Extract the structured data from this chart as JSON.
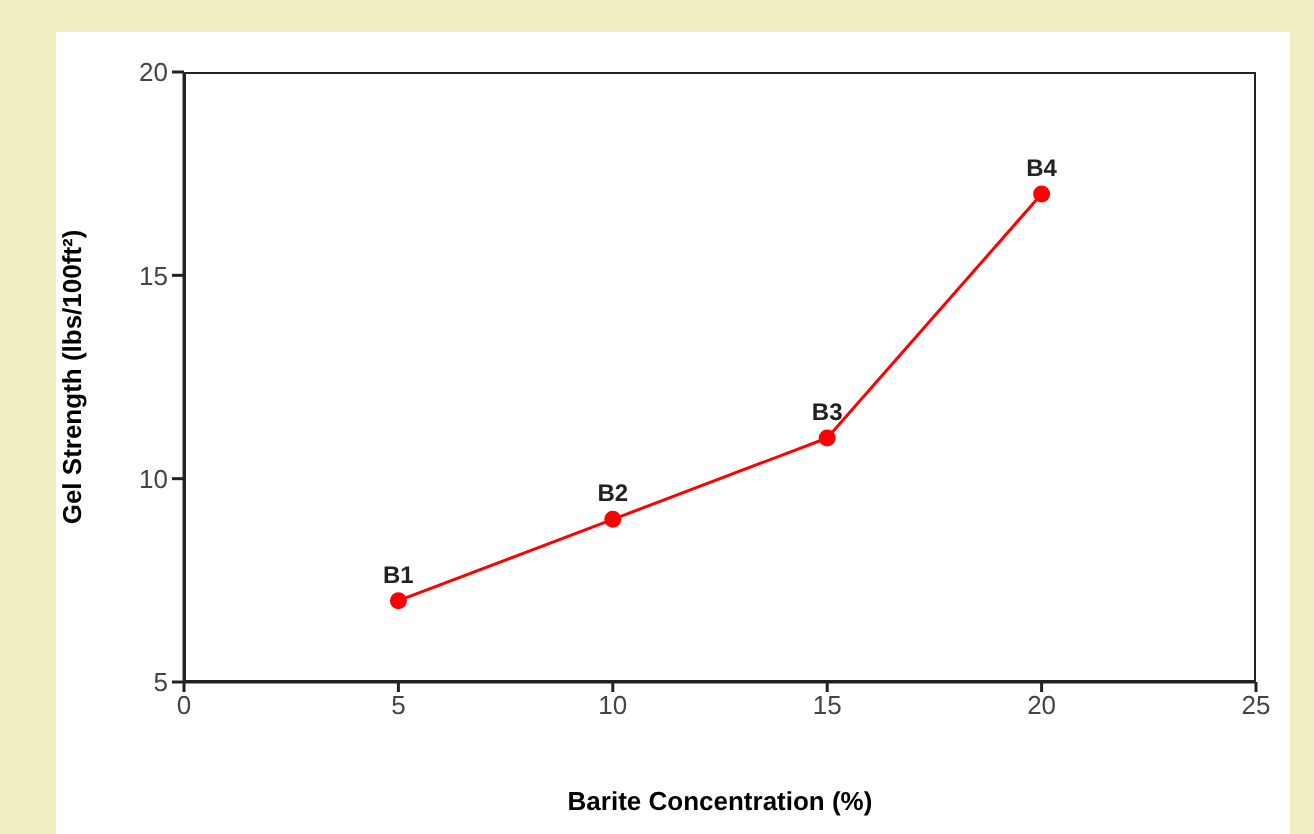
{
  "chart_data": {
    "type": "line",
    "xlabel": "Barite Concentration (%)",
    "ylabel": "Gel Strength (lbs/100ft²)",
    "x": [
      5,
      10,
      15,
      20
    ],
    "series": [
      {
        "color": "#ff0000",
        "values": [
          7,
          9,
          11,
          17
        ]
      }
    ],
    "xlim": [
      0,
      25
    ],
    "xticks": [
      0,
      5,
      10,
      15,
      20,
      25
    ],
    "ylim": [
      5,
      20
    ],
    "yticks": [
      5,
      10,
      15,
      20
    ],
    "grid": false,
    "marker": "circle",
    "line_style": "solid",
    "annotations": [
      {
        "text": "B1",
        "x": 5,
        "y": 7
      },
      {
        "text": "B2",
        "x": 10,
        "y": 9
      },
      {
        "text": "B3",
        "x": 15,
        "y": 11
      },
      {
        "text": "B4",
        "x": 20,
        "y": 17
      }
    ]
  }
}
